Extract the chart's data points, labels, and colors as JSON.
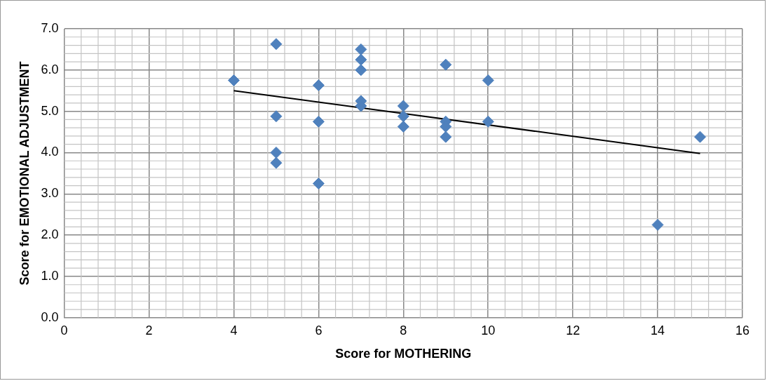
{
  "chart_data": {
    "type": "scatter",
    "xlabel": "Score for MOTHERING",
    "ylabel": "Score for EMOTIONAL ADJUSTMENT",
    "xlim": [
      0,
      16
    ],
    "xticks": [
      0,
      2,
      4,
      6,
      8,
      10,
      12,
      14,
      16
    ],
    "ylim": [
      0,
      7
    ],
    "yticks": [
      {
        "value": 0,
        "label": "0.0"
      },
      {
        "value": 1,
        "label": "1.0"
      },
      {
        "value": 2,
        "label": "2.0"
      },
      {
        "value": 3,
        "label": "3.0"
      },
      {
        "value": 4,
        "label": "4.0"
      },
      {
        "value": 5,
        "label": "5.0"
      },
      {
        "value": 6,
        "label": "6.0"
      },
      {
        "value": 7,
        "label": "7.0"
      }
    ],
    "grid": true,
    "series": [
      {
        "marker": "diamond",
        "color": "#4f81bd",
        "x": [
          4,
          5,
          5,
          5,
          5,
          6,
          6,
          6,
          7,
          7,
          7,
          7,
          7,
          8,
          8,
          8,
          9,
          9,
          9,
          9,
          10,
          10,
          14,
          15
        ],
        "values": [
          5.75,
          6.63,
          4.88,
          4.0,
          3.75,
          5.63,
          4.75,
          3.25,
          6.5,
          6.25,
          6.0,
          5.25,
          5.13,
          5.13,
          4.88,
          4.63,
          6.13,
          4.75,
          4.63,
          4.38,
          5.75,
          4.75,
          2.25,
          4.38
        ]
      },
      {
        "type": "line",
        "marker": "none",
        "color": "#000000",
        "x": [
          4,
          15
        ],
        "values": [
          5.5,
          3.98
        ]
      }
    ]
  }
}
